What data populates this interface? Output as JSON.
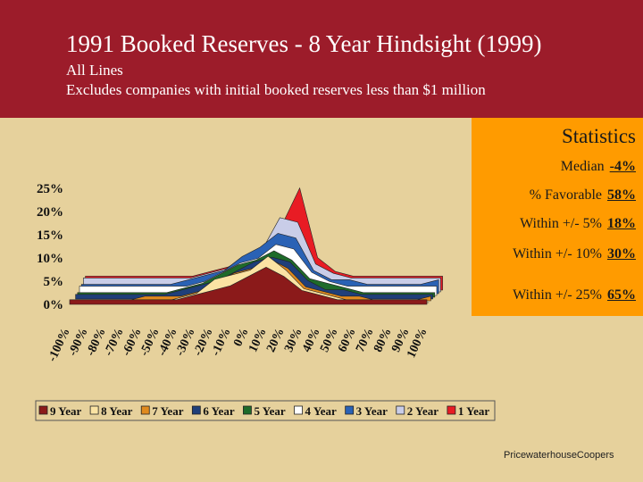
{
  "header": {
    "title": "1991 Booked Reserves - 8 Year Hindsight (1999)",
    "subtitle1": "All Lines",
    "subtitle2": "Excludes companies with initial booked reserves less than $1 million"
  },
  "statistics": {
    "title": "Statistics",
    "rows": [
      {
        "label": "Median",
        "value": "-4%"
      },
      {
        "label": "% Favorable",
        "value": "58%"
      },
      {
        "label": "Within +/- 5%",
        "value": "18%"
      },
      {
        "label": "Within +/- 10%",
        "value": "30%"
      },
      {
        "label": "Within +/- 25%",
        "value": "65%"
      }
    ]
  },
  "footer": "PricewaterhouseCoopers",
  "colors": {
    "header_bg": "#9c1c2a",
    "page_bg": "#e6d19c",
    "stats_bg": "#ff9b00"
  },
  "chart_data": {
    "type": "area",
    "title": "",
    "xlabel": "",
    "ylabel": "",
    "ylim": [
      0,
      25
    ],
    "y_ticks": [
      "0%",
      "5%",
      "10%",
      "15%",
      "20%",
      "25%"
    ],
    "categories": [
      "-100%",
      "-90%",
      "-80%",
      "-70%",
      "-60%",
      "-50%",
      "-40%",
      "-30%",
      "-20%",
      "-10%",
      "0%",
      "10%",
      "20%",
      "30%",
      "40%",
      "50%",
      "60%",
      "70%",
      "80%",
      "90%",
      "100%"
    ],
    "legend_position": "bottom",
    "series": [
      {
        "name": "9 Year",
        "color": "#8b1a1a",
        "values": [
          1,
          1,
          1,
          1,
          1,
          1,
          1,
          2,
          3,
          4,
          6,
          8,
          6,
          3,
          2,
          1,
          1,
          1,
          1,
          1,
          1
        ]
      },
      {
        "name": "8 Year",
        "color": "#fbe3a3",
        "values": [
          0,
          0,
          0,
          0,
          0,
          0,
          1,
          2,
          5,
          6,
          7,
          10,
          7,
          3,
          2,
          1,
          0,
          0,
          0,
          0,
          0
        ]
      },
      {
        "name": "7 Year",
        "color": "#e08a1e",
        "values": [
          0,
          0,
          0,
          0,
          1,
          1,
          1,
          2,
          4,
          6,
          7,
          9,
          7,
          3,
          2,
          1,
          1,
          0,
          0,
          0,
          1
        ]
      },
      {
        "name": "6 Year",
        "color": "#1f3f7a",
        "values": [
          1,
          1,
          1,
          1,
          1,
          1,
          2,
          3,
          4,
          6,
          8,
          9,
          8,
          4,
          2,
          2,
          1,
          1,
          1,
          1,
          1
        ]
      },
      {
        "name": "5 Year",
        "color": "#1e6b2a",
        "values": [
          1,
          1,
          1,
          1,
          1,
          1,
          2,
          3,
          5,
          7,
          8,
          10,
          8,
          4,
          3,
          2,
          1,
          1,
          1,
          1,
          1
        ]
      },
      {
        "name": "4 Year",
        "color": "#ffffff",
        "values": [
          2,
          2,
          2,
          2,
          2,
          2,
          2,
          3,
          5,
          7,
          8,
          11,
          10,
          5,
          3,
          2,
          2,
          2,
          2,
          2,
          2
        ]
      },
      {
        "name": "3 Year",
        "color": "#2a62b5",
        "values": [
          2,
          2,
          2,
          2,
          2,
          2,
          3,
          4,
          5,
          8,
          10,
          13,
          12,
          5,
          3,
          3,
          2,
          2,
          2,
          2,
          3
        ]
      },
      {
        "name": "2 Year",
        "color": "#c9cde8",
        "values": [
          3,
          3,
          3,
          3,
          3,
          3,
          3,
          4,
          5,
          7,
          9,
          16,
          15,
          6,
          4,
          3,
          3,
          3,
          3,
          3,
          3
        ]
      },
      {
        "name": "1 Year",
        "color": "#e81c24",
        "values": [
          3,
          3,
          3,
          3,
          3,
          3,
          3,
          4,
          5,
          7,
          9,
          14,
          22,
          7,
          4,
          3,
          3,
          3,
          3,
          3,
          3
        ]
      }
    ]
  }
}
